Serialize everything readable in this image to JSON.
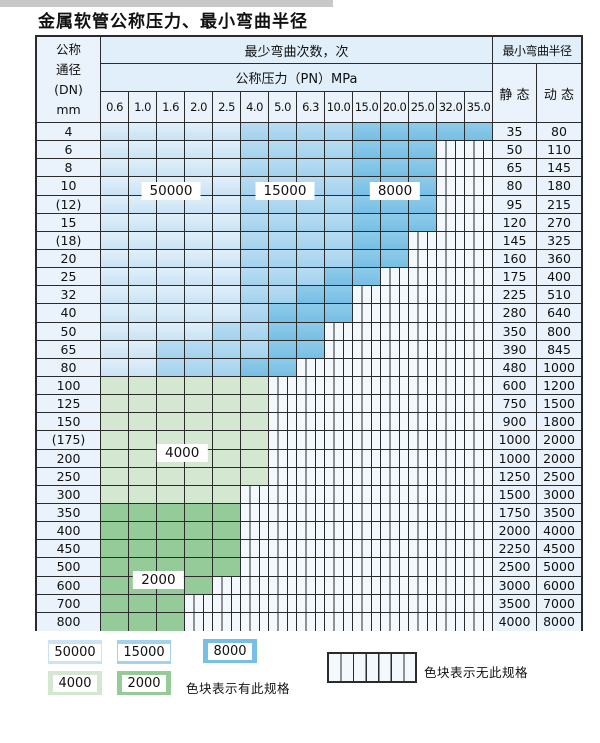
{
  "title": "金属软管公称压力、最小弯曲半径",
  "header": {
    "dn_line1": "公称",
    "dn_line2": "通径",
    "dn_line3": "(DN)",
    "dn_line4": "mm",
    "bend_cycles": "最少弯曲次数，次",
    "pressure": "公称压力（PN）MPa",
    "min_bend_radius": "最小弯曲半径",
    "static_label": "静 态",
    "dynamic_label": "动 态"
  },
  "chart_data": {
    "type": "table",
    "title": "金属软管公称压力、最小弯曲半径",
    "columns_pressure_MPa": [
      "0.6",
      "1.0",
      "1.6",
      "2.0",
      "2.5",
      "4.0",
      "5.0",
      "6.3",
      "10.0",
      "15.0",
      "20.0",
      "25.0",
      "32.0",
      "35.0"
    ],
    "rows": [
      {
        "dn": "4",
        "static": "35",
        "dynamic": "80",
        "segments": [
          {
            "cycles": "50000",
            "from": 0,
            "to": 4
          },
          {
            "cycles": "15000",
            "from": 5,
            "to": 8
          },
          {
            "cycles": "8000",
            "from": 9,
            "to": 13
          }
        ],
        "no_spec_from": null
      },
      {
        "dn": "6",
        "static": "50",
        "dynamic": "110",
        "segments": [
          {
            "cycles": "50000",
            "from": 0,
            "to": 4
          },
          {
            "cycles": "15000",
            "from": 5,
            "to": 8
          },
          {
            "cycles": "8000",
            "from": 9,
            "to": 11
          }
        ],
        "no_spec_from": 12
      },
      {
        "dn": "8",
        "static": "65",
        "dynamic": "145",
        "segments": [
          {
            "cycles": "50000",
            "from": 0,
            "to": 4
          },
          {
            "cycles": "15000",
            "from": 5,
            "to": 8
          },
          {
            "cycles": "8000",
            "from": 9,
            "to": 11
          }
        ],
        "no_spec_from": 12
      },
      {
        "dn": "10",
        "static": "80",
        "dynamic": "180",
        "segments": [
          {
            "cycles": "50000",
            "from": 0,
            "to": 4
          },
          {
            "cycles": "15000",
            "from": 5,
            "to": 8
          },
          {
            "cycles": "8000",
            "from": 9,
            "to": 11
          }
        ],
        "no_spec_from": 12
      },
      {
        "dn": "(12)",
        "static": "95",
        "dynamic": "215",
        "segments": [
          {
            "cycles": "50000",
            "from": 0,
            "to": 4
          },
          {
            "cycles": "15000",
            "from": 5,
            "to": 8
          },
          {
            "cycles": "8000",
            "from": 9,
            "to": 11
          }
        ],
        "no_spec_from": 12
      },
      {
        "dn": "15",
        "static": "120",
        "dynamic": "270",
        "segments": [
          {
            "cycles": "50000",
            "from": 0,
            "to": 4
          },
          {
            "cycles": "15000",
            "from": 5,
            "to": 8
          },
          {
            "cycles": "8000",
            "from": 9,
            "to": 11
          }
        ],
        "no_spec_from": 12
      },
      {
        "dn": "(18)",
        "static": "145",
        "dynamic": "325",
        "segments": [
          {
            "cycles": "50000",
            "from": 0,
            "to": 4
          },
          {
            "cycles": "15000",
            "from": 5,
            "to": 8
          },
          {
            "cycles": "8000",
            "from": 9,
            "to": 10
          }
        ],
        "no_spec_from": 11
      },
      {
        "dn": "20",
        "static": "160",
        "dynamic": "360",
        "segments": [
          {
            "cycles": "50000",
            "from": 0,
            "to": 4
          },
          {
            "cycles": "15000",
            "from": 5,
            "to": 8
          },
          {
            "cycles": "8000",
            "from": 9,
            "to": 10
          }
        ],
        "no_spec_from": 11
      },
      {
        "dn": "25",
        "static": "175",
        "dynamic": "400",
        "segments": [
          {
            "cycles": "50000",
            "from": 0,
            "to": 4
          },
          {
            "cycles": "15000",
            "from": 5,
            "to": 7
          },
          {
            "cycles": "8000",
            "from": 8,
            "to": 9
          }
        ],
        "no_spec_from": 10
      },
      {
        "dn": "32",
        "static": "225",
        "dynamic": "510",
        "segments": [
          {
            "cycles": "50000",
            "from": 0,
            "to": 4
          },
          {
            "cycles": "15000",
            "from": 5,
            "to": 6
          },
          {
            "cycles": "8000",
            "from": 7,
            "to": 8
          }
        ],
        "no_spec_from": 9
      },
      {
        "dn": "40",
        "static": "280",
        "dynamic": "640",
        "segments": [
          {
            "cycles": "50000",
            "from": 0,
            "to": 4
          },
          {
            "cycles": "15000",
            "from": 5,
            "to": 5
          },
          {
            "cycles": "8000",
            "from": 6,
            "to": 8
          }
        ],
        "no_spec_from": 9
      },
      {
        "dn": "50",
        "static": "350",
        "dynamic": "800",
        "segments": [
          {
            "cycles": "50000",
            "from": 0,
            "to": 3
          },
          {
            "cycles": "15000",
            "from": 4,
            "to": 5
          },
          {
            "cycles": "8000",
            "from": 6,
            "to": 7
          }
        ],
        "no_spec_from": 8
      },
      {
        "dn": "65",
        "static": "390",
        "dynamic": "845",
        "segments": [
          {
            "cycles": "50000",
            "from": 0,
            "to": 1
          },
          {
            "cycles": "15000",
            "from": 2,
            "to": 5
          },
          {
            "cycles": "8000",
            "from": 6,
            "to": 7
          }
        ],
        "no_spec_from": 8
      },
      {
        "dn": "80",
        "static": "480",
        "dynamic": "1000",
        "segments": [
          {
            "cycles": "50000",
            "from": 0,
            "to": 1
          },
          {
            "cycles": "15000",
            "from": 2,
            "to": 4
          },
          {
            "cycles": "8000",
            "from": 5,
            "to": 6
          }
        ],
        "no_spec_from": 7
      },
      {
        "dn": "100",
        "static": "600",
        "dynamic": "1200",
        "segments": [
          {
            "cycles": "4000",
            "from": 0,
            "to": 5
          }
        ],
        "no_spec_from": 6
      },
      {
        "dn": "125",
        "static": "750",
        "dynamic": "1500",
        "segments": [
          {
            "cycles": "4000",
            "from": 0,
            "to": 5
          }
        ],
        "no_spec_from": 6
      },
      {
        "dn": "150",
        "static": "900",
        "dynamic": "1800",
        "segments": [
          {
            "cycles": "4000",
            "from": 0,
            "to": 5
          }
        ],
        "no_spec_from": 6
      },
      {
        "dn": "(175)",
        "static": "1000",
        "dynamic": "2000",
        "segments": [
          {
            "cycles": "4000",
            "from": 0,
            "to": 5
          }
        ],
        "no_spec_from": 6
      },
      {
        "dn": "200",
        "static": "1000",
        "dynamic": "2000",
        "segments": [
          {
            "cycles": "4000",
            "from": 0,
            "to": 5
          }
        ],
        "no_spec_from": 6
      },
      {
        "dn": "250",
        "static": "1250",
        "dynamic": "2500",
        "segments": [
          {
            "cycles": "4000",
            "from": 0,
            "to": 5
          }
        ],
        "no_spec_from": 6
      },
      {
        "dn": "300",
        "static": "1500",
        "dynamic": "3000",
        "segments": [
          {
            "cycles": "4000",
            "from": 0,
            "to": 4
          }
        ],
        "no_spec_from": 5
      },
      {
        "dn": "350",
        "static": "1750",
        "dynamic": "3500",
        "segments": [
          {
            "cycles": "2000",
            "from": 0,
            "to": 4
          }
        ],
        "no_spec_from": 5
      },
      {
        "dn": "400",
        "static": "2000",
        "dynamic": "4000",
        "segments": [
          {
            "cycles": "2000",
            "from": 0,
            "to": 4
          }
        ],
        "no_spec_from": 5
      },
      {
        "dn": "450",
        "static": "2250",
        "dynamic": "4500",
        "segments": [
          {
            "cycles": "2000",
            "from": 0,
            "to": 4
          }
        ],
        "no_spec_from": 5
      },
      {
        "dn": "500",
        "static": "2500",
        "dynamic": "5000",
        "segments": [
          {
            "cycles": "2000",
            "from": 0,
            "to": 4
          }
        ],
        "no_spec_from": 5
      },
      {
        "dn": "600",
        "static": "3000",
        "dynamic": "6000",
        "segments": [
          {
            "cycles": "2000",
            "from": 0,
            "to": 3
          }
        ],
        "no_spec_from": 4
      },
      {
        "dn": "700",
        "static": "3500",
        "dynamic": "7000",
        "segments": [
          {
            "cycles": "2000",
            "from": 0,
            "to": 2
          }
        ],
        "no_spec_from": 3
      },
      {
        "dn": "800",
        "static": "4000",
        "dynamic": "8000",
        "segments": [
          {
            "cycles": "2000",
            "from": 0,
            "to": 2
          }
        ],
        "no_spec_from": 3
      }
    ],
    "grid_labels": [
      {
        "text": "50000",
        "col": 2.5,
        "row": 3.77
      },
      {
        "text": "15000",
        "col": 6.57,
        "row": 3.77
      },
      {
        "text": "8000",
        "col": 10.5,
        "row": 3.77
      },
      {
        "text": "4000",
        "col": 2.9,
        "row": 18.2
      },
      {
        "text": "2000",
        "col": 2.05,
        "row": 25.2
      }
    ]
  },
  "legend": {
    "items": [
      {
        "cycles": "50000"
      },
      {
        "cycles": "15000"
      },
      {
        "cycles": "8000"
      },
      {
        "cycles": "4000"
      },
      {
        "cycles": "2000"
      }
    ],
    "has_spec_label": "色块表示有此规格",
    "no_spec_label": "色块表示无此规格"
  },
  "colors": {
    "c50000": "#cbe3f4",
    "c15000": "#a3d2ee",
    "c8000": "#77bfe5",
    "c4000": "#d3e7d1",
    "c2000": "#95cb98",
    "grid": "#2b2b2b",
    "headerBg": "#e0effa",
    "cellBg": "#eaf3fb",
    "hatchBg": "#f2f8fc"
  }
}
